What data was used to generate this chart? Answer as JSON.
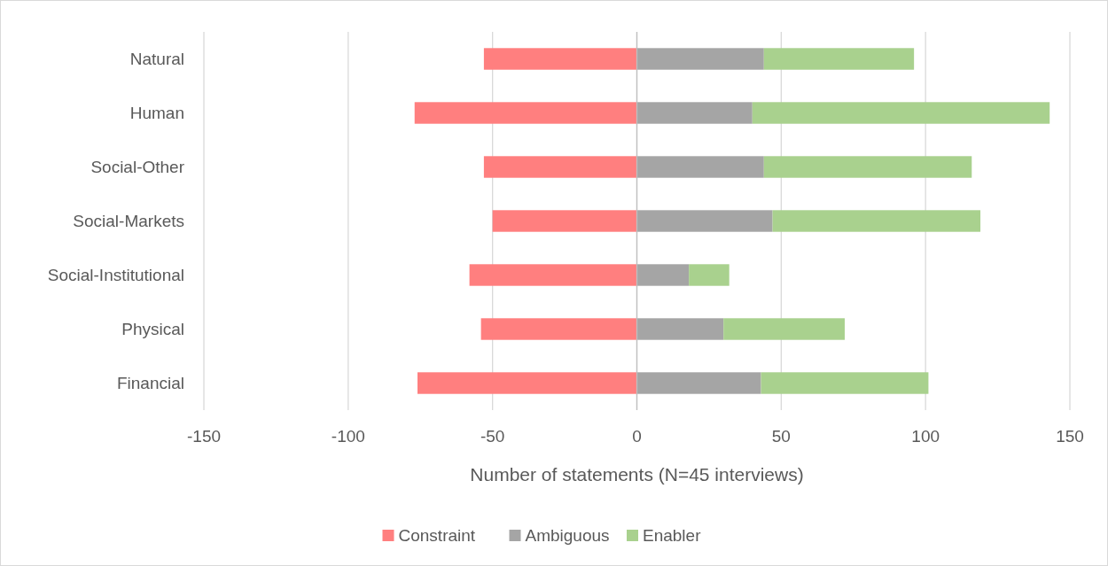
{
  "chart_data": {
    "type": "bar",
    "orientation": "horizontal",
    "stacked": true,
    "categories": [
      "Natural",
      "Human",
      "Social-Other",
      "Social-Markets",
      "Social-Institutional",
      "Physical",
      "Financial"
    ],
    "series": [
      {
        "name": "Constraint",
        "color": "#ff7f7f",
        "values": [
          -53,
          -77,
          -53,
          -50,
          -58,
          -54,
          -76
        ]
      },
      {
        "name": "Ambiguous",
        "color": "#a5a5a5",
        "values": [
          44,
          40,
          44,
          47,
          18,
          30,
          43
        ]
      },
      {
        "name": "Enabler",
        "color": "#a9d18e",
        "values": [
          52,
          103,
          72,
          72,
          14,
          42,
          58
        ]
      }
    ],
    "xlim": [
      -150,
      150
    ],
    "xticks": [
      -150,
      -100,
      -50,
      0,
      50,
      100,
      150
    ],
    "xlabel": "Number of statements (N=45 interviews)",
    "grid": "x",
    "legend": "bottom"
  }
}
